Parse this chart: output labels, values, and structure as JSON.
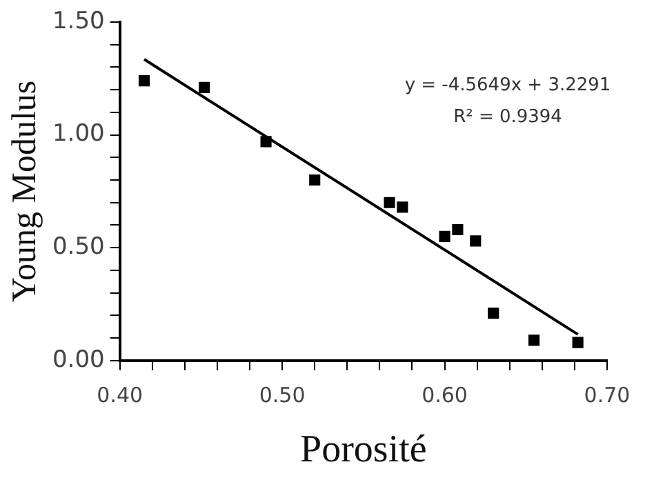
{
  "chart_data": {
    "type": "scatter",
    "xlabel": "Porosité",
    "ylabel": "Young Modulus",
    "xlim": [
      0.4,
      0.7
    ],
    "ylim": [
      0,
      1.5
    ],
    "xticks": [
      {
        "value": 0.4,
        "label": "0.40"
      },
      {
        "value": 0.42,
        "label": null
      },
      {
        "value": 0.44,
        "label": null
      },
      {
        "value": 0.46,
        "label": null
      },
      {
        "value": 0.48,
        "label": null
      },
      {
        "value": 0.5,
        "label": "0.50"
      },
      {
        "value": 0.52,
        "label": null
      },
      {
        "value": 0.54,
        "label": null
      },
      {
        "value": 0.56,
        "label": null
      },
      {
        "value": 0.58,
        "label": null
      },
      {
        "value": 0.6,
        "label": "0.60"
      },
      {
        "value": 0.62,
        "label": null
      },
      {
        "value": 0.64,
        "label": null
      },
      {
        "value": 0.66,
        "label": null
      },
      {
        "value": 0.68,
        "label": null
      },
      {
        "value": 0.7,
        "label": "0.70"
      }
    ],
    "yticks": [
      {
        "value": 0,
        "label": "0.00"
      },
      {
        "value": 0.1,
        "label": null
      },
      {
        "value": 0.2,
        "label": null
      },
      {
        "value": 0.3,
        "label": null
      },
      {
        "value": 0.4,
        "label": null
      },
      {
        "value": 0.5,
        "label": "0.50"
      },
      {
        "value": 0.6,
        "label": null
      },
      {
        "value": 0.7,
        "label": null
      },
      {
        "value": 0.8,
        "label": null
      },
      {
        "value": 0.9,
        "label": null
      },
      {
        "value": 1,
        "label": "1.00"
      },
      {
        "value": 1.1,
        "label": null
      },
      {
        "value": 1.2,
        "label": null
      },
      {
        "value": 1.3,
        "label": null
      },
      {
        "value": 1.4,
        "label": null
      },
      {
        "value": 1.5,
        "label": "1.50"
      }
    ],
    "grid": false,
    "legend": false,
    "annotations": [
      "y = -4.5649x + 3.2291",
      "R² = 0.9394"
    ],
    "series": [
      {
        "color": "#000000",
        "marker": "square",
        "x": [
          0.415,
          0.452,
          0.49,
          0.52,
          0.566,
          0.574,
          0.6,
          0.608,
          0.619,
          0.63,
          0.655,
          0.682
        ],
        "values": [
          1.24,
          1.21,
          0.97,
          0.8,
          0.7,
          0.68,
          0.55,
          0.58,
          0.53,
          0.21,
          0.09,
          0.08
        ]
      },
      {
        "type": "line",
        "color": "#000000",
        "marker": "none",
        "x": [
          0.415,
          0.682
        ],
        "values": [
          1.335,
          0.116
        ]
      }
    ]
  }
}
